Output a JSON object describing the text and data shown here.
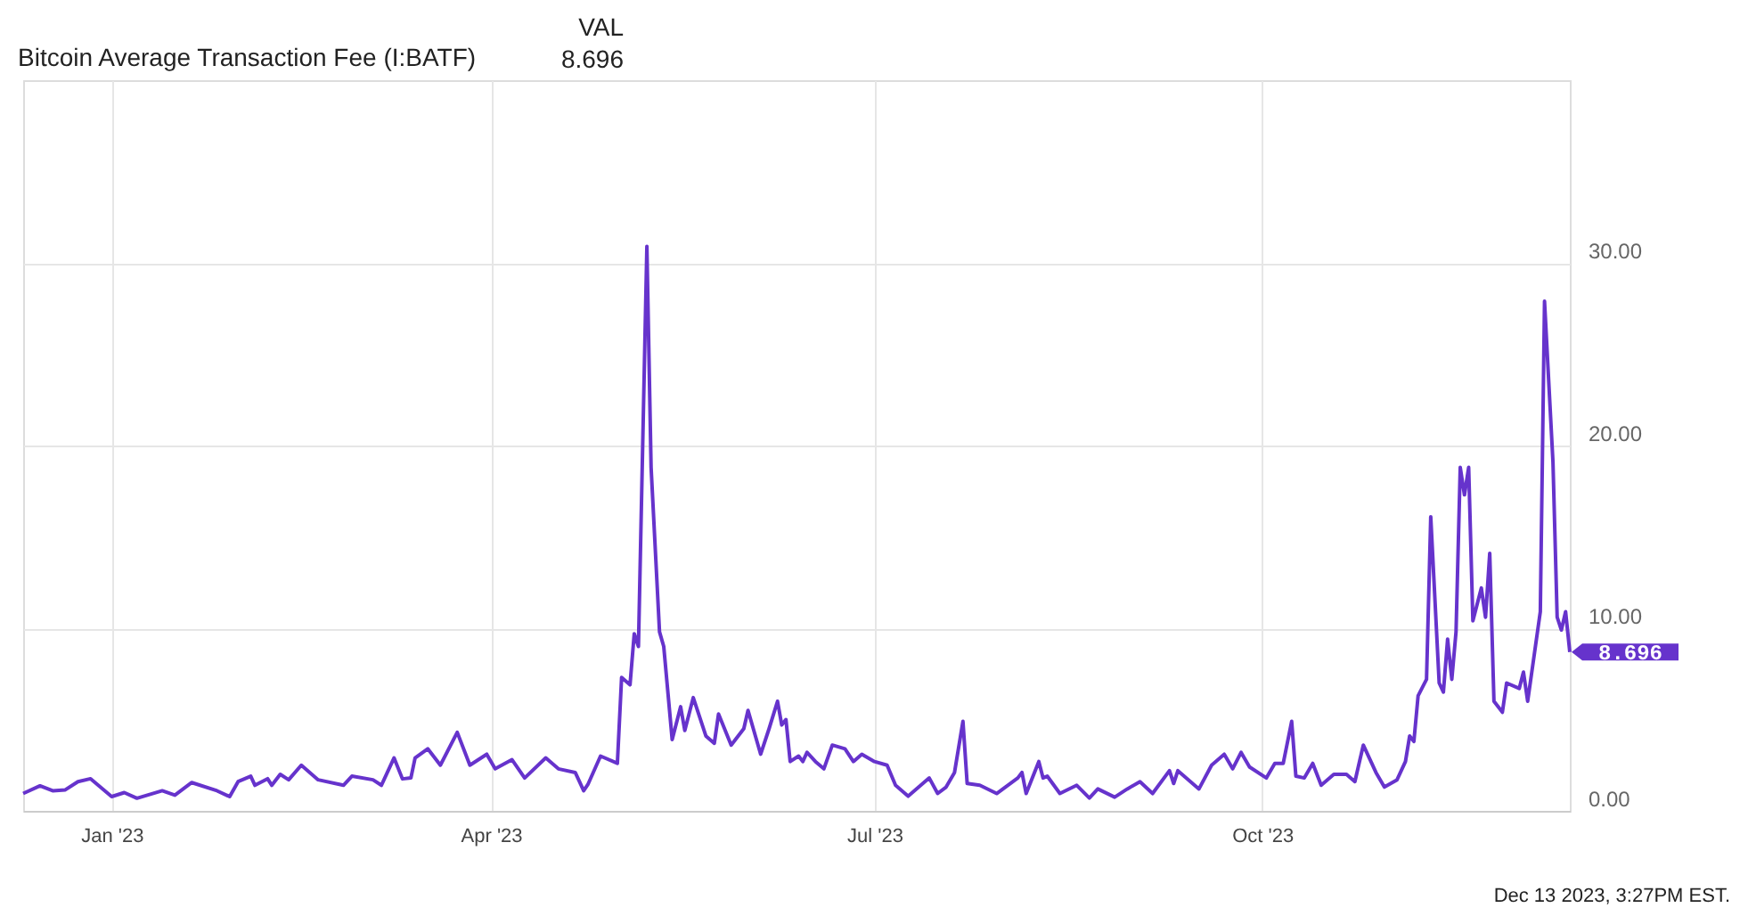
{
  "chart_data": {
    "type": "line",
    "title": "Bitcoin Average Transaction Fee (I:BATF)",
    "x": [
      "2022-12-11",
      "2022-12-15",
      "2022-12-18",
      "2022-12-21",
      "2022-12-24",
      "2022-12-27",
      "2022-12-29",
      "2023-01-01",
      "2023-01-04",
      "2023-01-07",
      "2023-01-13",
      "2023-01-16",
      "2023-01-20",
      "2023-01-26",
      "2023-01-29",
      "2023-01-31",
      "2023-02-03",
      "2023-02-04",
      "2023-02-07",
      "2023-02-08",
      "2023-02-10",
      "2023-02-12",
      "2023-02-15",
      "2023-02-19",
      "2023-02-25",
      "2023-02-27",
      "2023-03-04",
      "2023-03-06",
      "2023-03-09",
      "2023-03-11",
      "2023-03-13",
      "2023-03-14",
      "2023-03-17",
      "2023-03-20",
      "2023-03-24",
      "2023-03-27",
      "2023-03-31",
      "2023-04-02",
      "2023-04-06",
      "2023-04-09",
      "2023-04-14",
      "2023-04-17",
      "2023-04-21",
      "2023-04-23",
      "2023-04-24",
      "2023-04-27",
      "2023-05-01",
      "2023-05-02",
      "2023-05-04",
      "2023-05-05",
      "2023-05-06",
      "2023-05-08",
      "2023-05-09",
      "2023-05-11",
      "2023-05-12",
      "2023-05-14",
      "2023-05-16",
      "2023-05-17",
      "2023-05-19",
      "2023-05-22",
      "2023-05-24",
      "2023-05-25",
      "2023-05-28",
      "2023-05-31",
      "2023-06-01",
      "2023-06-04",
      "2023-06-06",
      "2023-06-08",
      "2023-06-09",
      "2023-06-10",
      "2023-06-11",
      "2023-06-13",
      "2023-06-14",
      "2023-06-15",
      "2023-06-17",
      "2023-06-19",
      "2023-06-21",
      "2023-06-24",
      "2023-06-26",
      "2023-06-28",
      "2023-07-01",
      "2023-07-04",
      "2023-07-06",
      "2023-07-09",
      "2023-07-14",
      "2023-07-16",
      "2023-07-18",
      "2023-07-20",
      "2023-07-22",
      "2023-07-23",
      "2023-07-26",
      "2023-07-30",
      "2023-08-04",
      "2023-08-05",
      "2023-08-06",
      "2023-08-09",
      "2023-08-10",
      "2023-08-11",
      "2023-08-14",
      "2023-08-18",
      "2023-08-21",
      "2023-08-23",
      "2023-08-27",
      "2023-08-30",
      "2023-09-02",
      "2023-09-05",
      "2023-09-09",
      "2023-09-10",
      "2023-09-11",
      "2023-09-16",
      "2023-09-19",
      "2023-09-22",
      "2023-09-24",
      "2023-09-26",
      "2023-09-28",
      "2023-10-02",
      "2023-10-04",
      "2023-10-06",
      "2023-10-08",
      "2023-10-09",
      "2023-10-11",
      "2023-10-13",
      "2023-10-15",
      "2023-10-18",
      "2023-10-21",
      "2023-10-23",
      "2023-10-25",
      "2023-10-28",
      "2023-10-30",
      "2023-11-02",
      "2023-11-04",
      "2023-11-05",
      "2023-11-06",
      "2023-11-07",
      "2023-11-09",
      "2023-11-10",
      "2023-11-12",
      "2023-11-13",
      "2023-11-14",
      "2023-11-15",
      "2023-11-16",
      "2023-11-17",
      "2023-11-18",
      "2023-11-19",
      "2023-11-20",
      "2023-11-22",
      "2023-11-23",
      "2023-11-24",
      "2023-11-25",
      "2023-11-27",
      "2023-11-28",
      "2023-12-01",
      "2023-12-02",
      "2023-12-03",
      "2023-12-06",
      "2023-12-07",
      "2023-12-09",
      "2023-12-10",
      "2023-12-11",
      "2023-12-12",
      "2023-12-13"
    ],
    "series": [
      {
        "color": "#6633cc",
        "values": [
          0.95,
          1.37,
          1.1,
          1.15,
          1.6,
          1.76,
          1.37,
          0.78,
          1.0,
          0.69,
          1.1,
          0.86,
          1.55,
          1.1,
          0.78,
          1.6,
          1.9,
          1.4,
          1.76,
          1.4,
          2.0,
          1.7,
          2.5,
          1.7,
          1.4,
          1.9,
          1.7,
          1.4,
          2.9,
          1.75,
          1.8,
          2.9,
          3.4,
          2.5,
          4.3,
          2.5,
          3.1,
          2.3,
          2.8,
          1.8,
          2.9,
          2.3,
          2.1,
          1.1,
          1.44,
          3.0,
          2.6,
          7.3,
          6.9,
          9.7,
          9.0,
          30.9,
          18.8,
          9.8,
          9.0,
          3.9,
          5.7,
          4.4,
          6.2,
          4.1,
          3.7,
          5.3,
          3.6,
          4.5,
          5.5,
          3.1,
          4.5,
          6.0,
          4.7,
          5.0,
          2.7,
          3.0,
          2.7,
          3.2,
          2.7,
          2.3,
          3.6,
          3.4,
          2.7,
          3.1,
          2.7,
          2.5,
          1.4,
          0.8,
          1.8,
          0.95,
          1.3,
          2.1,
          4.9,
          1.5,
          1.4,
          0.95,
          1.8,
          2.1,
          0.95,
          2.7,
          1.8,
          1.9,
          0.95,
          1.4,
          0.7,
          1.2,
          0.75,
          1.2,
          1.6,
          0.95,
          2.2,
          1.5,
          2.2,
          1.2,
          2.5,
          3.1,
          2.3,
          3.2,
          2.4,
          1.8,
          2.6,
          2.6,
          4.9,
          1.9,
          1.8,
          2.6,
          1.4,
          2.0,
          2.0,
          1.6,
          3.6,
          2.1,
          1.3,
          1.7,
          2.7,
          4.1,
          3.8,
          6.3,
          7.2,
          16.1,
          7.0,
          6.5,
          9.4,
          7.2,
          9.8,
          18.8,
          17.3,
          18.8,
          10.4,
          12.2,
          10.6,
          14.1,
          6.0,
          5.4,
          7.0,
          6.7,
          7.6,
          6.0,
          10.9,
          27.9,
          19.1,
          10.6,
          9.9,
          10.9,
          8.696
        ]
      }
    ],
    "xlim": [
      "2022-12-11",
      "2023-12-13"
    ],
    "xticks": [
      {
        "value": "2023-01-01",
        "label": "Jan '23"
      },
      {
        "value": "2023-04-01",
        "label": "Apr '23"
      },
      {
        "value": "2023-07-01",
        "label": "Jul '23"
      },
      {
        "value": "2023-10-01",
        "label": "Oct '23"
      }
    ],
    "ylim": [
      0,
      40
    ],
    "yticks": [
      {
        "value": 0,
        "label": "0.00"
      },
      {
        "value": 10,
        "label": "10.00"
      },
      {
        "value": 20,
        "label": "20.00"
      },
      {
        "value": 30,
        "label": "30.00"
      }
    ],
    "grid": true,
    "annotations": [
      "VAL",
      "8.696",
      {
        "text": "8.696",
        "x": "2023-12-13",
        "y": 8.696
      },
      "Dec 13 2023, 3:27PM EST."
    ]
  }
}
